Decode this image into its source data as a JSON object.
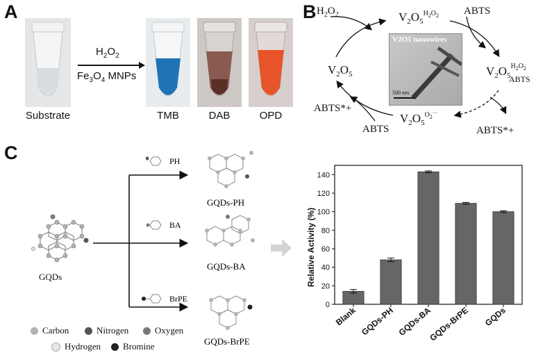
{
  "panels": {
    "a": {
      "letter": "A",
      "reagent": "H2O2",
      "catalyst": "Fe3O4 MNPs",
      "tubes": [
        {
          "label": "Substrate",
          "liquid_color": "#d9dde0"
        },
        {
          "label": "TMB",
          "liquid_color": "#1f74b8"
        },
        {
          "label": "DAB",
          "liquid_color": "#5a2f28"
        },
        {
          "label": "OPD",
          "liquid_color": "#e8542a"
        }
      ]
    },
    "b": {
      "letter": "B",
      "inset_title": "V2O5 nanowires",
      "scale_bar": "500 nm",
      "h2o2": "H2O2",
      "abts_top": "ABTS",
      "abts_bottom": "ABTS",
      "abts_radical_left": "ABTS*+",
      "abts_radical_right": "ABTS*+"
    },
    "c": {
      "letter": "C",
      "start_label": "GQDs",
      "branches": [
        {
          "reagent": "PH",
          "product": "GQDs-PH"
        },
        {
          "reagent": "BA",
          "product": "GQDs-BA"
        },
        {
          "reagent": "BrPE",
          "product": "GQDs-BrPE"
        }
      ],
      "legend": [
        {
          "label": "Carbon",
          "color": "#b3b3b3"
        },
        {
          "label": "Nitrogen",
          "color": "#555555"
        },
        {
          "label": "Oxygen",
          "color": "#7a7a7a"
        },
        {
          "label": "Hydrogen",
          "color": "#e6e6e6"
        },
        {
          "label": "Bromine",
          "color": "#222222"
        }
      ]
    }
  },
  "chart_data": {
    "type": "bar",
    "categories": [
      "Blank",
      "GQDs-PH",
      "GQDs-BA",
      "GQDs-BrPE",
      "GQDs"
    ],
    "values": [
      14,
      48,
      143,
      109,
      100
    ],
    "errors": [
      2,
      2,
      1,
      1,
      1
    ],
    "ylabel": "Relative Activity (%)",
    "ylim": [
      0,
      150
    ],
    "yticks": [
      0,
      20,
      40,
      60,
      80,
      100,
      120,
      140
    ],
    "bar_color": "#666666"
  }
}
